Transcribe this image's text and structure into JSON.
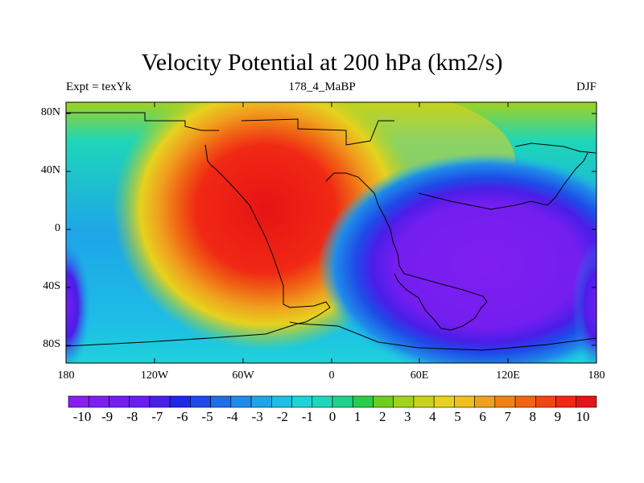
{
  "title": "Velocity Potential at 200 hPa (km2/s)",
  "left_label": "Expt = texYk",
  "center_label": "178_4_MaBP",
  "right_label": "DJF",
  "y_ticks": [
    "80N",
    "40N",
    "0",
    "40S",
    "80S"
  ],
  "x_ticks": [
    "180",
    "120W",
    "60W",
    "0",
    "60E",
    "120E",
    "180"
  ],
  "colorbar": {
    "labels": [
      "-10",
      "-9",
      "-8",
      "-7",
      "-6",
      "-5",
      "-4",
      "-3",
      "-2",
      "-1",
      "0",
      "1",
      "2",
      "3",
      "4",
      "5",
      "6",
      "7",
      "8",
      "9",
      "10"
    ],
    "colors": [
      "#8a1ef0",
      "#7f1ef0",
      "#741ef0",
      "#691ef0",
      "#4a1ee8",
      "#1e28e6",
      "#1e4be8",
      "#1e6ee8",
      "#1e8ce8",
      "#1ea5e8",
      "#1ebee6",
      "#1ed2d8",
      "#1ed6ba",
      "#1ed28c",
      "#28cd4b",
      "#6ecd1e",
      "#a0d21e",
      "#c8d21e",
      "#e6d21e",
      "#f0be1e",
      "#f0a01e",
      "#f08214",
      "#f06414",
      "#f04614",
      "#f02814",
      "#e61414"
    ]
  },
  "map_data": {
    "lon_range": [
      -180,
      180
    ],
    "lat_range": [
      -90,
      90
    ],
    "field": "velocity potential",
    "level_hPa": 200,
    "units": "km2/s",
    "contour_min": -10,
    "contour_max": 10,
    "contour_step": 0.5,
    "features": [
      {
        "name": "positive maximum",
        "lon": -50,
        "lat": 10,
        "value": 10
      },
      {
        "name": "negative minimum",
        "lon": 110,
        "lat": -10,
        "value": -10
      }
    ]
  }
}
